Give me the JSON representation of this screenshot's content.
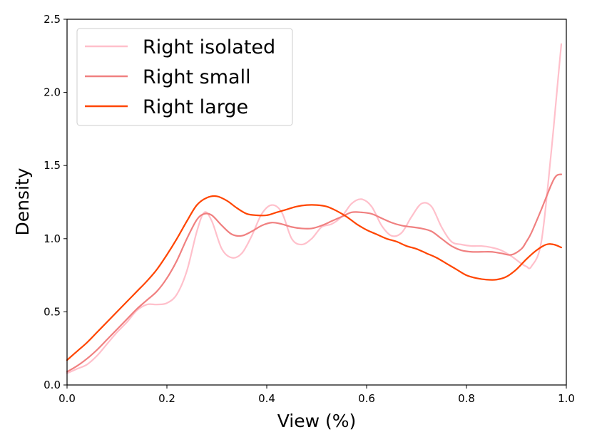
{
  "chart_data": {
    "type": "line",
    "title": "",
    "xlabel": "View (%)",
    "ylabel": "Density",
    "xlim": [
      0.0,
      1.0
    ],
    "ylim": [
      0.0,
      2.5
    ],
    "xticks": [
      0.0,
      0.2,
      0.4,
      0.6,
      0.8,
      1.0
    ],
    "xtick_labels": [
      "0.0",
      "0.2",
      "0.4",
      "0.6",
      "0.8",
      "1.0"
    ],
    "yticks": [
      0.0,
      0.5,
      1.0,
      1.5,
      2.0,
      2.5
    ],
    "ytick_labels": [
      "0.0",
      "0.5",
      "1.0",
      "1.5",
      "2.0",
      "2.5"
    ],
    "grid": false,
    "legend_position": "top-left",
    "series": [
      {
        "name": "Right isolated",
        "color": "#ffc0cb",
        "points": [
          [
            0.0,
            0.08
          ],
          [
            0.02,
            0.11
          ],
          [
            0.04,
            0.14
          ],
          [
            0.06,
            0.2
          ],
          [
            0.08,
            0.28
          ],
          [
            0.1,
            0.36
          ],
          [
            0.12,
            0.43
          ],
          [
            0.14,
            0.51
          ],
          [
            0.16,
            0.55
          ],
          [
            0.18,
            0.55
          ],
          [
            0.2,
            0.56
          ],
          [
            0.22,
            0.62
          ],
          [
            0.24,
            0.78
          ],
          [
            0.26,
            1.05
          ],
          [
            0.275,
            1.18
          ],
          [
            0.29,
            1.12
          ],
          [
            0.31,
            0.93
          ],
          [
            0.33,
            0.87
          ],
          [
            0.35,
            0.9
          ],
          [
            0.37,
            1.02
          ],
          [
            0.39,
            1.17
          ],
          [
            0.41,
            1.23
          ],
          [
            0.43,
            1.18
          ],
          [
            0.45,
            1.0
          ],
          [
            0.47,
            0.96
          ],
          [
            0.49,
            1.0
          ],
          [
            0.51,
            1.08
          ],
          [
            0.53,
            1.1
          ],
          [
            0.55,
            1.15
          ],
          [
            0.57,
            1.24
          ],
          [
            0.59,
            1.27
          ],
          [
            0.61,
            1.22
          ],
          [
            0.63,
            1.09
          ],
          [
            0.65,
            1.02
          ],
          [
            0.67,
            1.04
          ],
          [
            0.69,
            1.15
          ],
          [
            0.71,
            1.24
          ],
          [
            0.73,
            1.22
          ],
          [
            0.75,
            1.08
          ],
          [
            0.77,
            0.98
          ],
          [
            0.79,
            0.96
          ],
          [
            0.81,
            0.95
          ],
          [
            0.83,
            0.95
          ],
          [
            0.85,
            0.94
          ],
          [
            0.87,
            0.92
          ],
          [
            0.89,
            0.88
          ],
          [
            0.91,
            0.83
          ],
          [
            0.92,
            0.81
          ],
          [
            0.93,
            0.81
          ],
          [
            0.95,
            0.98
          ],
          [
            0.97,
            1.6
          ],
          [
            0.985,
            2.15
          ],
          [
            0.99,
            2.33
          ]
        ]
      },
      {
        "name": "Right small",
        "color": "#f08080",
        "points": [
          [
            0.0,
            0.09
          ],
          [
            0.02,
            0.13
          ],
          [
            0.04,
            0.18
          ],
          [
            0.06,
            0.24
          ],
          [
            0.08,
            0.31
          ],
          [
            0.1,
            0.38
          ],
          [
            0.12,
            0.45
          ],
          [
            0.14,
            0.52
          ],
          [
            0.16,
            0.58
          ],
          [
            0.18,
            0.64
          ],
          [
            0.2,
            0.73
          ],
          [
            0.22,
            0.85
          ],
          [
            0.24,
            1.0
          ],
          [
            0.26,
            1.13
          ],
          [
            0.275,
            1.17
          ],
          [
            0.29,
            1.16
          ],
          [
            0.31,
            1.09
          ],
          [
            0.33,
            1.03
          ],
          [
            0.35,
            1.02
          ],
          [
            0.37,
            1.05
          ],
          [
            0.39,
            1.09
          ],
          [
            0.41,
            1.11
          ],
          [
            0.43,
            1.1
          ],
          [
            0.45,
            1.08
          ],
          [
            0.47,
            1.07
          ],
          [
            0.49,
            1.07
          ],
          [
            0.51,
            1.09
          ],
          [
            0.53,
            1.12
          ],
          [
            0.55,
            1.15
          ],
          [
            0.57,
            1.18
          ],
          [
            0.59,
            1.18
          ],
          [
            0.61,
            1.17
          ],
          [
            0.63,
            1.14
          ],
          [
            0.65,
            1.11
          ],
          [
            0.67,
            1.09
          ],
          [
            0.69,
            1.08
          ],
          [
            0.71,
            1.07
          ],
          [
            0.73,
            1.05
          ],
          [
            0.75,
            1.0
          ],
          [
            0.77,
            0.95
          ],
          [
            0.79,
            0.92
          ],
          [
            0.81,
            0.91
          ],
          [
            0.83,
            0.91
          ],
          [
            0.85,
            0.91
          ],
          [
            0.87,
            0.9
          ],
          [
            0.89,
            0.89
          ],
          [
            0.91,
            0.93
          ],
          [
            0.92,
            0.98
          ],
          [
            0.93,
            1.04
          ],
          [
            0.95,
            1.2
          ],
          [
            0.97,
            1.37
          ],
          [
            0.98,
            1.43
          ],
          [
            0.99,
            1.44
          ]
        ]
      },
      {
        "name": "Right large",
        "color": "#ff4500",
        "points": [
          [
            0.0,
            0.17
          ],
          [
            0.02,
            0.23
          ],
          [
            0.04,
            0.29
          ],
          [
            0.06,
            0.36
          ],
          [
            0.08,
            0.43
          ],
          [
            0.1,
            0.5
          ],
          [
            0.12,
            0.57
          ],
          [
            0.14,
            0.64
          ],
          [
            0.16,
            0.71
          ],
          [
            0.18,
            0.79
          ],
          [
            0.2,
            0.89
          ],
          [
            0.22,
            1.0
          ],
          [
            0.24,
            1.12
          ],
          [
            0.26,
            1.23
          ],
          [
            0.28,
            1.28
          ],
          [
            0.3,
            1.29
          ],
          [
            0.32,
            1.26
          ],
          [
            0.34,
            1.21
          ],
          [
            0.36,
            1.17
          ],
          [
            0.38,
            1.16
          ],
          [
            0.4,
            1.16
          ],
          [
            0.42,
            1.18
          ],
          [
            0.44,
            1.2
          ],
          [
            0.46,
            1.22
          ],
          [
            0.48,
            1.23
          ],
          [
            0.5,
            1.23
          ],
          [
            0.52,
            1.22
          ],
          [
            0.54,
            1.19
          ],
          [
            0.56,
            1.15
          ],
          [
            0.58,
            1.1
          ],
          [
            0.6,
            1.06
          ],
          [
            0.62,
            1.03
          ],
          [
            0.64,
            1.0
          ],
          [
            0.66,
            0.98
          ],
          [
            0.68,
            0.95
          ],
          [
            0.7,
            0.93
          ],
          [
            0.72,
            0.9
          ],
          [
            0.74,
            0.87
          ],
          [
            0.76,
            0.83
          ],
          [
            0.78,
            0.79
          ],
          [
            0.8,
            0.75
          ],
          [
            0.82,
            0.73
          ],
          [
            0.84,
            0.72
          ],
          [
            0.86,
            0.72
          ],
          [
            0.88,
            0.74
          ],
          [
            0.9,
            0.79
          ],
          [
            0.92,
            0.86
          ],
          [
            0.94,
            0.92
          ],
          [
            0.96,
            0.96
          ],
          [
            0.975,
            0.96
          ],
          [
            0.99,
            0.94
          ]
        ]
      }
    ]
  }
}
